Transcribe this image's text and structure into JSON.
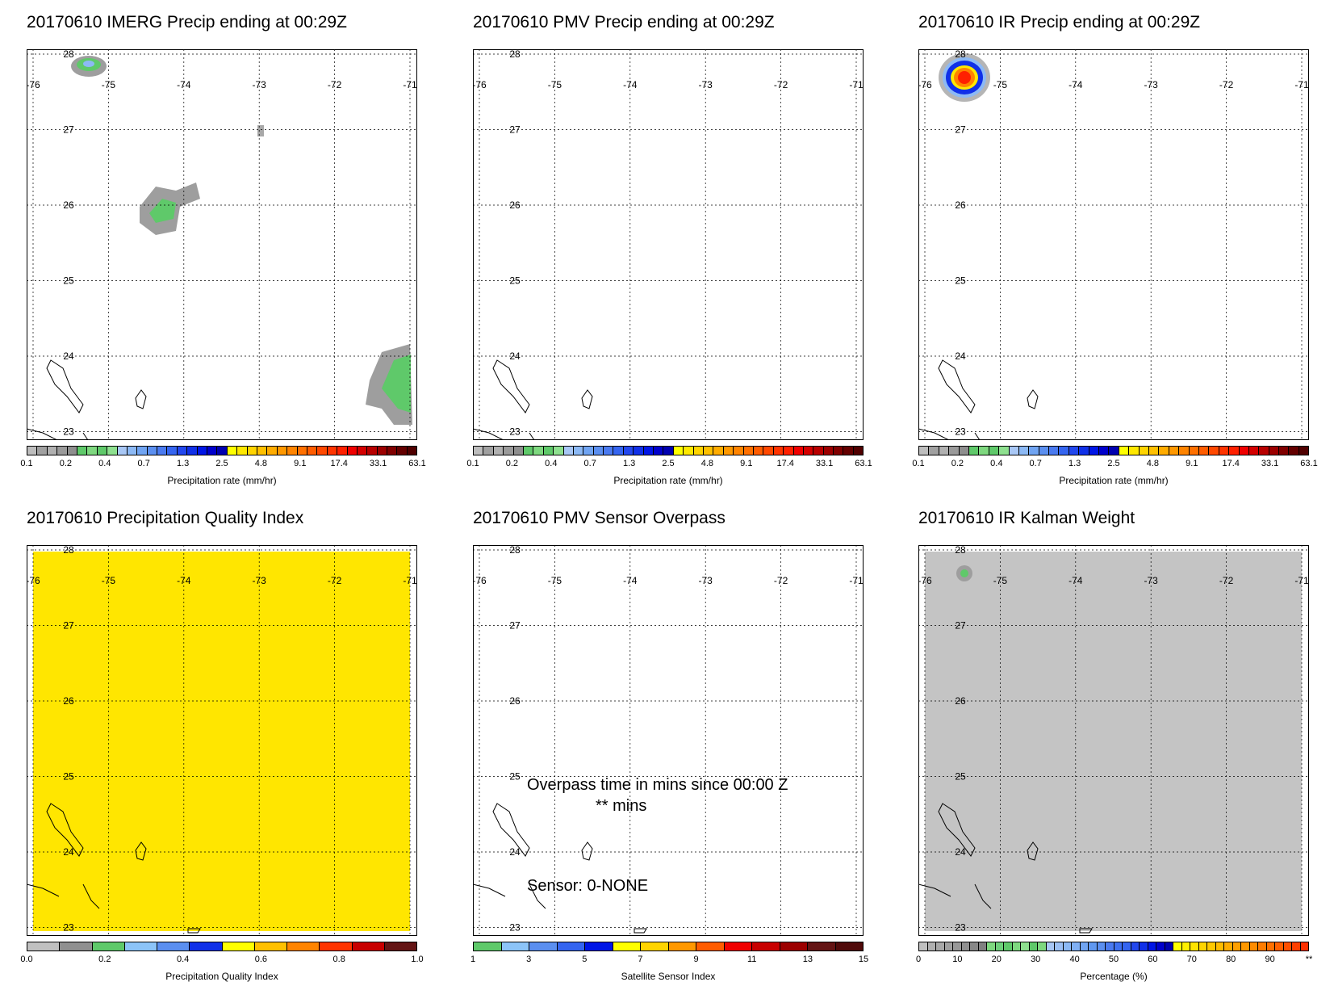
{
  "panels": [
    {
      "title": "20170610 IMERG Precip ending at 00:29Z",
      "fill": "none",
      "colorbar": {
        "title": "Precipitation rate (mm/hr)",
        "ticks": [
          "0.1",
          "0.2",
          "0.4",
          "0.7",
          "1.3",
          "2.5",
          "4.8",
          "9.1",
          "17.4",
          "33.1",
          "63.1"
        ],
        "colors": [
          "#bdbdbd",
          "#a0a0a0",
          "#b0b0b0",
          "#9a9a9a",
          "#8e8e8e",
          "#5fc96a",
          "#7ed87f",
          "#5fc96a",
          "#8ee08f",
          "#a8c7f5",
          "#8cb9f5",
          "#70a4f2",
          "#5b8ff0",
          "#4a7af0",
          "#3565f0",
          "#2247ee",
          "#1030e8",
          "#0015e6",
          "#0000cc",
          "#0000b0",
          "#ffff00",
          "#ffe800",
          "#ffd400",
          "#ffc000",
          "#ffac00",
          "#ff9800",
          "#ff8400",
          "#ff7000",
          "#ff5c00",
          "#ff4800",
          "#ff3400",
          "#ff2000",
          "#f00000",
          "#d40000",
          "#b80000",
          "#9c0000",
          "#800000",
          "#640000",
          "#500000"
        ]
      }
    },
    {
      "title": "20170610 PMV Precip ending at 00:29Z",
      "fill": "none",
      "colorbar": {
        "title": "Precipitation rate (mm/hr)",
        "ticks": [
          "0.1",
          "0.2",
          "0.4",
          "0.7",
          "1.3",
          "2.5",
          "4.8",
          "9.1",
          "17.4",
          "33.1",
          "63.1"
        ],
        "colors": [
          "#bdbdbd",
          "#a0a0a0",
          "#b0b0b0",
          "#9a9a9a",
          "#8e8e8e",
          "#5fc96a",
          "#7ed87f",
          "#5fc96a",
          "#8ee08f",
          "#a8c7f5",
          "#8cb9f5",
          "#70a4f2",
          "#5b8ff0",
          "#4a7af0",
          "#3565f0",
          "#2247ee",
          "#1030e8",
          "#0015e6",
          "#0000cc",
          "#0000b0",
          "#ffff00",
          "#ffe800",
          "#ffd400",
          "#ffc000",
          "#ffac00",
          "#ff9800",
          "#ff8400",
          "#ff7000",
          "#ff5c00",
          "#ff4800",
          "#ff3400",
          "#ff2000",
          "#f00000",
          "#d40000",
          "#b80000",
          "#9c0000",
          "#800000",
          "#640000",
          "#500000"
        ]
      }
    },
    {
      "title": "20170610 IR Precip ending at 00:29Z",
      "fill": "none",
      "colorbar": {
        "title": "Precipitation rate (mm/hr)",
        "ticks": [
          "0.1",
          "0.2",
          "0.4",
          "0.7",
          "1.3",
          "2.5",
          "4.8",
          "9.1",
          "17.4",
          "33.1",
          "63.1"
        ],
        "colors": [
          "#bdbdbd",
          "#a0a0a0",
          "#b0b0b0",
          "#9a9a9a",
          "#8e8e8e",
          "#5fc96a",
          "#7ed87f",
          "#5fc96a",
          "#8ee08f",
          "#a8c7f5",
          "#8cb9f5",
          "#70a4f2",
          "#5b8ff0",
          "#4a7af0",
          "#3565f0",
          "#2247ee",
          "#1030e8",
          "#0015e6",
          "#0000cc",
          "#0000b0",
          "#ffff00",
          "#ffe800",
          "#ffd400",
          "#ffc000",
          "#ffac00",
          "#ff9800",
          "#ff8400",
          "#ff7000",
          "#ff5c00",
          "#ff4800",
          "#ff3400",
          "#ff2000",
          "#f00000",
          "#d40000",
          "#b80000",
          "#9c0000",
          "#800000",
          "#640000",
          "#500000"
        ]
      }
    },
    {
      "title": "20170610 Precipitation Quality Index",
      "fill": "#ffe600",
      "colorbar": {
        "title": "Precipitation Quality Index",
        "ticks": [
          "0.0",
          "0.2",
          "0.4",
          "0.6",
          "0.8",
          "1.0"
        ],
        "colors": [
          "#c0c0c0",
          "#909090",
          "#5fc96a",
          "#8cc4f8",
          "#5b8ff0",
          "#1030e8",
          "#ffff00",
          "#ffc000",
          "#ff8400",
          "#ff3400",
          "#c80000",
          "#641414"
        ]
      }
    },
    {
      "title": "20170610 PMV Sensor Overpass",
      "fill": "none",
      "colorbar": {
        "title": "Satellite Sensor Index",
        "ticks": [
          "1",
          "3",
          "5",
          "7",
          "9",
          "11",
          "13",
          "15"
        ],
        "colors": [
          "#5fc96a",
          "#8cc4f8",
          "#5b8ff0",
          "#3565f0",
          "#0015e6",
          "#ffff00",
          "#ffd400",
          "#ff9800",
          "#ff5c00",
          "#f00000",
          "#c80000",
          "#9c0000",
          "#641414",
          "#500a0a"
        ]
      }
    },
    {
      "title": "20170610 IR Kalman Weight",
      "fill": "#c4c4c4",
      "colorbar": {
        "title": "Percentage (%)",
        "ticks": [
          "0",
          "10",
          "20",
          "30",
          "40",
          "50",
          "60",
          "70",
          "80",
          "90",
          "**"
        ],
        "colors": [
          "#c0c0c0",
          "#b0b0b0",
          "#a8a8a8",
          "#a0a0a0",
          "#989898",
          "#909090",
          "#888888",
          "#808080",
          "#7ed87f",
          "#6ed07a",
          "#5fc96a",
          "#7ed87f",
          "#8ee08f",
          "#5fc96a",
          "#7ed87f",
          "#a8c7f5",
          "#9cc0f5",
          "#8cb9f5",
          "#80b0f4",
          "#70a4f2",
          "#6098f0",
          "#5b8ff0",
          "#4a7af0",
          "#3e70f0",
          "#3565f0",
          "#2247ee",
          "#1030e8",
          "#0015e6",
          "#0000cc",
          "#0000b0",
          "#ffff00",
          "#fff000",
          "#ffe400",
          "#ffd400",
          "#ffc800",
          "#ffbc00",
          "#ffac00",
          "#ffa000",
          "#ff9800",
          "#ff8c00",
          "#ff7c00",
          "#ff7000",
          "#ff6000",
          "#ff5000",
          "#ff4000",
          "#ff3000"
        ]
      }
    }
  ],
  "axes": {
    "lon_ticks": [
      "-76",
      "-75",
      "-74",
      "-73",
      "-72",
      "-71"
    ],
    "lat_ticks": [
      "28",
      "27",
      "26",
      "25",
      "24",
      "23"
    ]
  },
  "overpass_annotation": {
    "line1": "Overpass time in mins since 00:00 Z",
    "line2": "** mins",
    "sensor": "Sensor:   0-NONE"
  }
}
